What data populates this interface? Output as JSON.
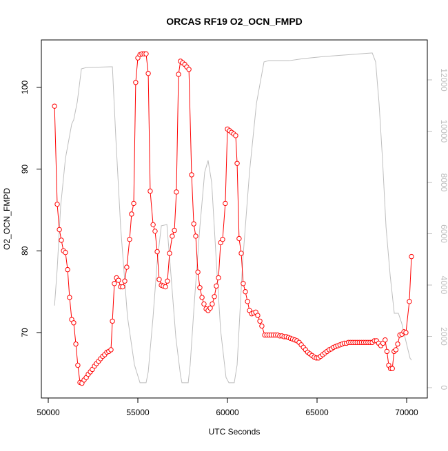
{
  "chart_data": {
    "type": "line",
    "title": "ORCAS RF19 O2_OCN_FMPD",
    "x_label": "UTC Seconds",
    "y_label": "O2_OCN_FMPD",
    "xlim": [
      49615,
      71154
    ],
    "xticks": [
      50000,
      55000,
      60000,
      65000,
      70000
    ],
    "ylim": [
      62.0,
      105.8
    ],
    "yticks": [
      70,
      80,
      90,
      100
    ],
    "y2lim": [
      -403,
      13557
    ],
    "y2ticks": [
      0,
      2000,
      4000,
      6000,
      8000,
      10000,
      12000
    ],
    "series": [
      {
        "color": "#bebebe",
        "axis": "y2",
        "x": [
          50350,
          50500,
          50690,
          50960,
          51310,
          51420,
          51620,
          51850,
          52120,
          53460,
          53580,
          53770,
          54040,
          54420,
          54810,
          55120,
          55460,
          55580,
          55850,
          56080,
          56310,
          56620,
          56850,
          57120,
          57380,
          57460,
          57810,
          57920,
          58150,
          58460,
          58730,
          58920,
          59120,
          59380,
          59620,
          59920,
          60080,
          60380,
          60540,
          60850,
          61230,
          61620,
          62040,
          62310,
          63460,
          64230,
          65380,
          66540,
          68080,
          68270,
          68460,
          68650,
          68850,
          69080,
          69310,
          69540,
          69730,
          70000,
          70190,
          70270
        ],
        "values": [
          3200,
          4640,
          7060,
          8940,
          10280,
          10440,
          11140,
          12430,
          12480,
          12510,
          12510,
          9750,
          6260,
          2770,
          890,
          190,
          190,
          620,
          2770,
          4910,
          6310,
          6360,
          4380,
          1960,
          480,
          190,
          190,
          890,
          3300,
          6260,
          8400,
          8860,
          8000,
          4910,
          2230,
          400,
          190,
          190,
          890,
          4910,
          8400,
          11090,
          12700,
          12750,
          12750,
          12830,
          12910,
          12970,
          13050,
          12700,
          11090,
          8940,
          6260,
          4380,
          2900,
          2900,
          2500,
          1690,
          1150,
          1070
        ]
      },
      {
        "color": "#ff0000",
        "marker": "circle",
        "x": [
          50350,
          50500,
          50620,
          50730,
          50850,
          50960,
          51080,
          51190,
          51310,
          51420,
          51540,
          51650,
          51770,
          51880,
          52000,
          52120,
          52230,
          52350,
          52460,
          52580,
          52690,
          52810,
          52920,
          53040,
          53150,
          53270,
          53380,
          53500,
          53580,
          53690,
          53810,
          53920,
          54040,
          54150,
          54270,
          54380,
          54540,
          54650,
          54770,
          54880,
          55000,
          55120,
          55230,
          55350,
          55460,
          55580,
          55690,
          55850,
          55960,
          56080,
          56190,
          56310,
          56420,
          56540,
          56650,
          56770,
          56920,
          57040,
          57150,
          57270,
          57380,
          57500,
          57620,
          57730,
          57850,
          58000,
          58120,
          58230,
          58350,
          58460,
          58580,
          58690,
          58810,
          58920,
          59040,
          59150,
          59270,
          59380,
          59500,
          59620,
          59730,
          59880,
          60000,
          60120,
          60230,
          60350,
          60460,
          60540,
          60650,
          60770,
          60880,
          61000,
          61120,
          61230,
          61350,
          61460,
          61580,
          61690,
          61810,
          61920,
          62080,
          62200,
          62320,
          62440,
          62560,
          62680,
          62800,
          62920,
          63040,
          63160,
          63280,
          63400,
          63520,
          63640,
          63760,
          63880,
          64000,
          64120,
          64240,
          64360,
          64480,
          64600,
          64720,
          64840,
          64960,
          65080,
          65200,
          65320,
          65440,
          65560,
          65680,
          65800,
          65920,
          66040,
          66160,
          66280,
          66400,
          66520,
          66640,
          66760,
          66880,
          67000,
          67120,
          67240,
          67360,
          67480,
          67600,
          67720,
          67840,
          67960,
          68080,
          68200,
          68320,
          68440,
          68560,
          68680,
          68800,
          68900,
          69000,
          69100,
          69200,
          69300,
          69400,
          69500,
          69620,
          69740,
          69850,
          69960,
          70150,
          70270
        ],
        "values": [
          97.7,
          85.7,
          82.6,
          81.3,
          80.0,
          79.8,
          77.7,
          74.3,
          71.6,
          71.2,
          68.6,
          66.0,
          63.9,
          63.8,
          64.2,
          64.5,
          64.9,
          65.2,
          65.5,
          65.9,
          66.2,
          66.5,
          66.8,
          67.1,
          67.3,
          67.6,
          67.7,
          67.9,
          71.4,
          76.0,
          76.7,
          76.4,
          75.6,
          75.6,
          76.3,
          78.0,
          81.4,
          84.5,
          85.8,
          100.6,
          103.6,
          104.0,
          104.1,
          104.1,
          104.1,
          101.7,
          87.3,
          83.2,
          82.4,
          79.9,
          76.5,
          75.8,
          75.7,
          75.6,
          76.3,
          79.7,
          81.8,
          82.5,
          87.2,
          101.6,
          103.2,
          103.0,
          102.8,
          102.5,
          102.2,
          89.3,
          83.3,
          81.8,
          77.4,
          75.5,
          74.3,
          73.5,
          72.9,
          72.7,
          73.0,
          73.5,
          74.4,
          75.7,
          76.7,
          81.0,
          81.4,
          85.8,
          94.9,
          94.7,
          94.5,
          94.3,
          94.1,
          90.7,
          81.5,
          79.7,
          76.0,
          75.0,
          73.8,
          72.7,
          72.3,
          72.4,
          72.5,
          72.1,
          71.4,
          70.8,
          69.7,
          69.7,
          69.7,
          69.7,
          69.7,
          69.7,
          69.7,
          69.6,
          69.6,
          69.5,
          69.5,
          69.4,
          69.3,
          69.2,
          69.1,
          69.0,
          68.8,
          68.5,
          68.2,
          67.9,
          67.6,
          67.4,
          67.2,
          67.0,
          66.9,
          66.9,
          67.1,
          67.3,
          67.5,
          67.7,
          67.9,
          68.0,
          68.2,
          68.3,
          68.4,
          68.5,
          68.6,
          68.7,
          68.7,
          68.8,
          68.8,
          68.8,
          68.8,
          68.8,
          68.8,
          68.8,
          68.8,
          68.8,
          68.8,
          68.8,
          68.8,
          69.0,
          69.0,
          68.7,
          68.4,
          68.7,
          69.1,
          67.7,
          66.0,
          65.6,
          65.6,
          67.7,
          67.9,
          68.6,
          69.7,
          69.8,
          70.1,
          70.0,
          73.8,
          79.3
        ]
      }
    ]
  }
}
